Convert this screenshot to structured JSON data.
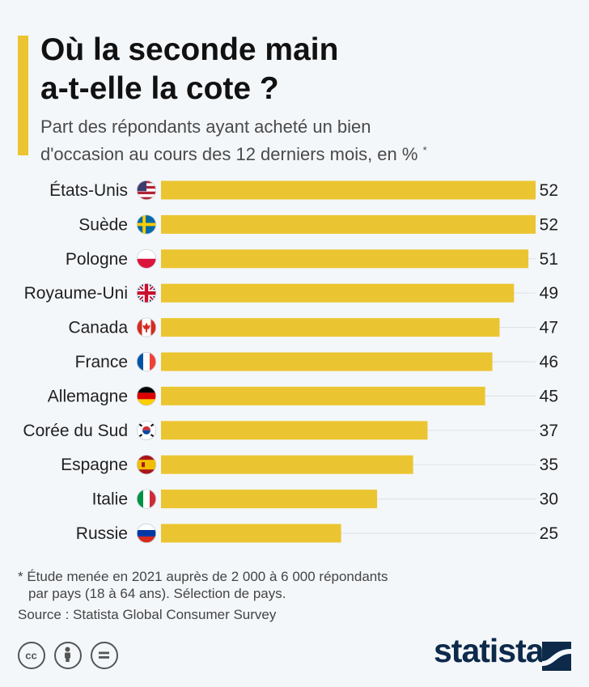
{
  "header": {
    "title_line1": "Où la seconde main",
    "title_line2": "a-t-elle la cote ?",
    "subtitle_line1": "Part des répondants ayant acheté un bien",
    "subtitle_line2": "d'occasion au cours des 12 derniers mois, en %",
    "subtitle_asterisk": "*"
  },
  "chart_data": {
    "type": "bar",
    "orientation": "horizontal",
    "categories": [
      "États-Unis",
      "Suède",
      "Pologne",
      "Royaume-Uni",
      "Canada",
      "France",
      "Allemagne",
      "Corée du Sud",
      "Espagne",
      "Italie",
      "Russie"
    ],
    "values": [
      52,
      52,
      51,
      49,
      47,
      46,
      45,
      37,
      35,
      30,
      25
    ],
    "flags": [
      "us-flag",
      "se-flag",
      "pl-flag",
      "gb-flag",
      "ca-flag",
      "fr-flag",
      "de-flag",
      "kr-flag",
      "es-flag",
      "it-flag",
      "ru-flag"
    ],
    "xlim": [
      0,
      52
    ],
    "grid": false,
    "bar_color": "#ebc531",
    "accent_color": "#ebc531",
    "brand_color": "#0d2a4a"
  },
  "footer": {
    "footnote_line1": "* Étude menée en 2021 auprès de 2 000 à 6 000 répondants",
    "footnote_line2": "par pays (18 à 64 ans). Sélection de pays.",
    "source": "Source : Statista Global Consumer Survey",
    "license_icons": [
      "cc-icon",
      "attribution-icon",
      "no-derivatives-icon"
    ],
    "logo_text": "statista",
    "logo_icon": "statista-logo-icon"
  }
}
